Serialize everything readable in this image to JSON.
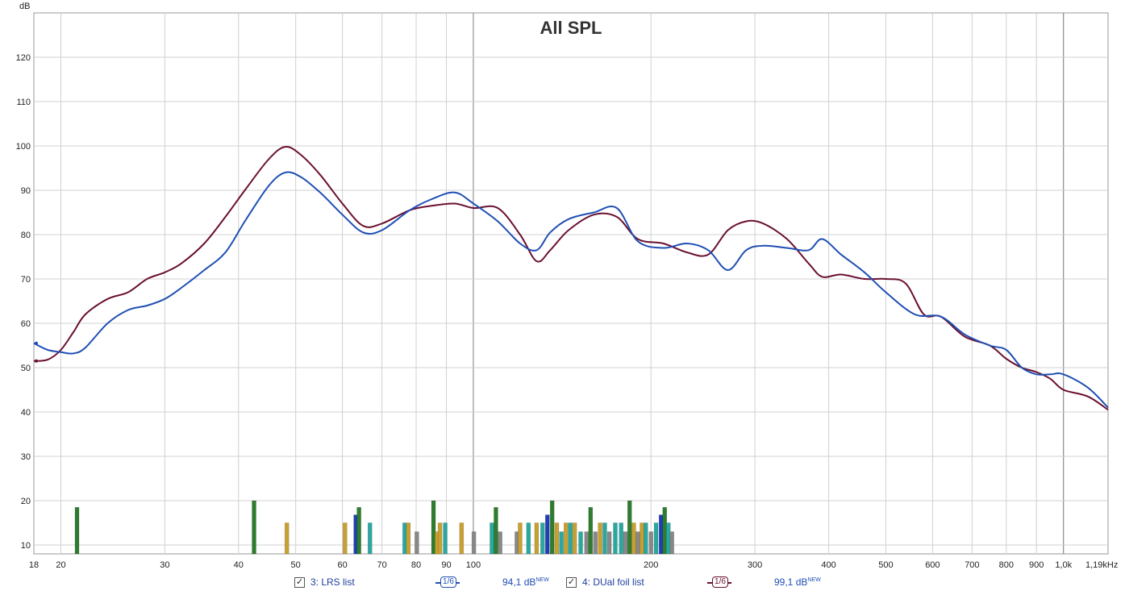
{
  "chart_data": {
    "type": "line",
    "title": "All SPL",
    "ylabel": "dB",
    "xunit_label": "1,19kHz",
    "xscale": "log",
    "xlim": [
      18,
      1190
    ],
    "ylim": [
      8,
      130
    ],
    "grid": true,
    "x_ticks": [
      18,
      20,
      30,
      40,
      50,
      60,
      70,
      80,
      90,
      100,
      200,
      300,
      400,
      500,
      600,
      700,
      800,
      900,
      1000
    ],
    "x_tick_labels": [
      "18",
      "20",
      "30",
      "40",
      "50",
      "60",
      "70",
      "80",
      "90",
      "100",
      "200",
      "300",
      "400",
      "500",
      "600",
      "700",
      "800",
      "900",
      "1,0k"
    ],
    "y_ticks": [
      10,
      20,
      30,
      40,
      50,
      60,
      70,
      80,
      90,
      100,
      110,
      120
    ],
    "series": [
      {
        "name": "3: LRS list",
        "color": "#1f4fb4",
        "x": [
          18,
          19,
          20,
          21,
          22,
          24,
          26,
          28,
          30,
          32,
          35,
          38,
          41,
          45,
          48,
          51,
          55,
          60,
          65,
          70,
          78,
          85,
          93,
          100,
          110,
          120,
          128,
          135,
          145,
          160,
          175,
          190,
          210,
          230,
          250,
          270,
          290,
          310,
          340,
          370,
          390,
          420,
          460,
          500,
          560,
          620,
          680,
          750,
          800,
          850,
          900,
          950,
          1000,
          1100,
          1190
        ],
        "y": [
          55.5,
          54.0,
          53.5,
          53.2,
          54.5,
          60.0,
          63.0,
          64.0,
          65.5,
          68.0,
          72.0,
          76.0,
          83.0,
          91.0,
          94.0,
          93.0,
          89.5,
          84.5,
          80.5,
          81.0,
          85.5,
          88.0,
          89.5,
          87.0,
          83.0,
          78.0,
          76.5,
          80.5,
          83.5,
          85.0,
          86.0,
          78.5,
          77.0,
          78.0,
          76.5,
          72.0,
          76.5,
          77.5,
          77.0,
          76.5,
          79.0,
          75.5,
          71.5,
          67.0,
          62.0,
          61.5,
          57.5,
          55.0,
          54.0,
          50.0,
          48.5,
          48.5,
          48.5,
          45.5,
          41.0
        ]
      },
      {
        "name": "4: DUal foil list",
        "color": "#6a1030",
        "x": [
          18,
          19,
          20,
          21,
          22,
          24,
          26,
          28,
          30,
          32,
          35,
          38,
          41,
          45,
          48,
          51,
          55,
          60,
          65,
          70,
          78,
          85,
          93,
          100,
          110,
          120,
          128,
          135,
          145,
          160,
          175,
          190,
          210,
          230,
          250,
          270,
          290,
          310,
          340,
          370,
          390,
          420,
          460,
          500,
          540,
          580,
          620,
          680,
          750,
          800,
          850,
          900,
          950,
          1000,
          1100,
          1190
        ],
        "y": [
          51.5,
          51.8,
          54.0,
          58.0,
          62.0,
          65.5,
          67.0,
          70.0,
          71.5,
          73.5,
          78.0,
          84.0,
          90.0,
          97.0,
          99.8,
          98.0,
          93.5,
          87.0,
          82.0,
          82.5,
          85.5,
          86.5,
          87.0,
          86.0,
          86.0,
          80.0,
          74.0,
          76.5,
          81.0,
          84.5,
          84.0,
          79.0,
          78.0,
          76.0,
          75.5,
          81.0,
          83.0,
          82.5,
          79.0,
          73.5,
          70.5,
          71.0,
          70.0,
          70.0,
          69.0,
          62.0,
          61.5,
          57.0,
          55.0,
          52.0,
          50.0,
          49.0,
          47.5,
          45.0,
          43.5,
          40.5
        ]
      }
    ],
    "markers": [
      {
        "x": 21.3,
        "y": 18.5,
        "color": "#2e7d2e"
      },
      {
        "x": 42.5,
        "y": 20.0,
        "color": "#2e7d2e"
      },
      {
        "x": 48.3,
        "y": 15.0,
        "color": "#c8a032"
      },
      {
        "x": 60.6,
        "y": 15.0,
        "color": "#c8a032"
      },
      {
        "x": 63.2,
        "y": 16.8,
        "color": "#1f3fb4"
      },
      {
        "x": 64.0,
        "y": 18.5,
        "color": "#2e7d2e"
      },
      {
        "x": 66.8,
        "y": 15.0,
        "color": "#2aa8a0"
      },
      {
        "x": 76.5,
        "y": 15.0,
        "color": "#2aa8a0"
      },
      {
        "x": 77.6,
        "y": 15.0,
        "color": "#c8a032"
      },
      {
        "x": 80.2,
        "y": 13.0,
        "color": "#888888"
      },
      {
        "x": 85.6,
        "y": 20.0,
        "color": "#2e7d2e"
      },
      {
        "x": 86.8,
        "y": 13.0,
        "color": "#c8a032"
      },
      {
        "x": 87.8,
        "y": 15.0,
        "color": "#c8a032"
      },
      {
        "x": 89.6,
        "y": 15.0,
        "color": "#2aa8a0"
      },
      {
        "x": 95.5,
        "y": 15.0,
        "color": "#c8a032"
      },
      {
        "x": 100.2,
        "y": 13.0,
        "color": "#888888"
      },
      {
        "x": 107.5,
        "y": 15.0,
        "color": "#2aa8a0"
      },
      {
        "x": 109.2,
        "y": 18.5,
        "color": "#2e7d2e"
      },
      {
        "x": 111.0,
        "y": 13.0,
        "color": "#888888"
      },
      {
        "x": 118.5,
        "y": 13.0,
        "color": "#888888"
      },
      {
        "x": 120.0,
        "y": 15.0,
        "color": "#c8a032"
      },
      {
        "x": 124.0,
        "y": 15.0,
        "color": "#2aa8a0"
      },
      {
        "x": 128.0,
        "y": 15.0,
        "color": "#c8a032"
      },
      {
        "x": 131.0,
        "y": 15.0,
        "color": "#2aa8a0"
      },
      {
        "x": 133.5,
        "y": 16.8,
        "color": "#1f3fb4"
      },
      {
        "x": 136.0,
        "y": 20.0,
        "color": "#2e7d2e"
      },
      {
        "x": 138.5,
        "y": 15.0,
        "color": "#c8a032"
      },
      {
        "x": 141.0,
        "y": 13.0,
        "color": "#2aa8a0"
      },
      {
        "x": 143.5,
        "y": 15.0,
        "color": "#c8a032"
      },
      {
        "x": 146.0,
        "y": 15.0,
        "color": "#2aa8a0"
      },
      {
        "x": 148.5,
        "y": 15.0,
        "color": "#c8a032"
      },
      {
        "x": 152.0,
        "y": 13.0,
        "color": "#2aa8a0"
      },
      {
        "x": 155.5,
        "y": 13.0,
        "color": "#888888"
      },
      {
        "x": 158.0,
        "y": 18.5,
        "color": "#2e7d2e"
      },
      {
        "x": 161.0,
        "y": 13.0,
        "color": "#888888"
      },
      {
        "x": 164.0,
        "y": 15.0,
        "color": "#c8a032"
      },
      {
        "x": 167.0,
        "y": 15.0,
        "color": "#2aa8a0"
      },
      {
        "x": 170.0,
        "y": 13.0,
        "color": "#888888"
      },
      {
        "x": 174.0,
        "y": 15.0,
        "color": "#2aa8a0"
      },
      {
        "x": 178.0,
        "y": 15.0,
        "color": "#2aa8a0"
      },
      {
        "x": 181.0,
        "y": 13.0,
        "color": "#888888"
      },
      {
        "x": 184.0,
        "y": 20.0,
        "color": "#2e7d2e"
      },
      {
        "x": 187.0,
        "y": 15.0,
        "color": "#c8a032"
      },
      {
        "x": 190.0,
        "y": 13.0,
        "color": "#888888"
      },
      {
        "x": 193.0,
        "y": 15.0,
        "color": "#c8a032"
      },
      {
        "x": 196.0,
        "y": 15.0,
        "color": "#2aa8a0"
      },
      {
        "x": 200.0,
        "y": 13.0,
        "color": "#888888"
      },
      {
        "x": 204.0,
        "y": 15.0,
        "color": "#2aa8a0"
      },
      {
        "x": 208.0,
        "y": 16.8,
        "color": "#1f3fb4"
      },
      {
        "x": 211.0,
        "y": 18.5,
        "color": "#2e7d2e"
      },
      {
        "x": 214.0,
        "y": 15.0,
        "color": "#2aa8a0"
      },
      {
        "x": 217.0,
        "y": 13.0,
        "color": "#888888"
      }
    ]
  },
  "legend": {
    "items": [
      {
        "checked": true,
        "label": "3: LRS list",
        "smoothing": "1/6",
        "value": "94,1 dB",
        "badge": "NEW",
        "color": "#1f4fb4"
      },
      {
        "checked": true,
        "label": "4: DUal foil list",
        "smoothing": "1/6",
        "value": "99,1 dB",
        "badge": "NEW",
        "color": "#6a1030"
      }
    ]
  }
}
